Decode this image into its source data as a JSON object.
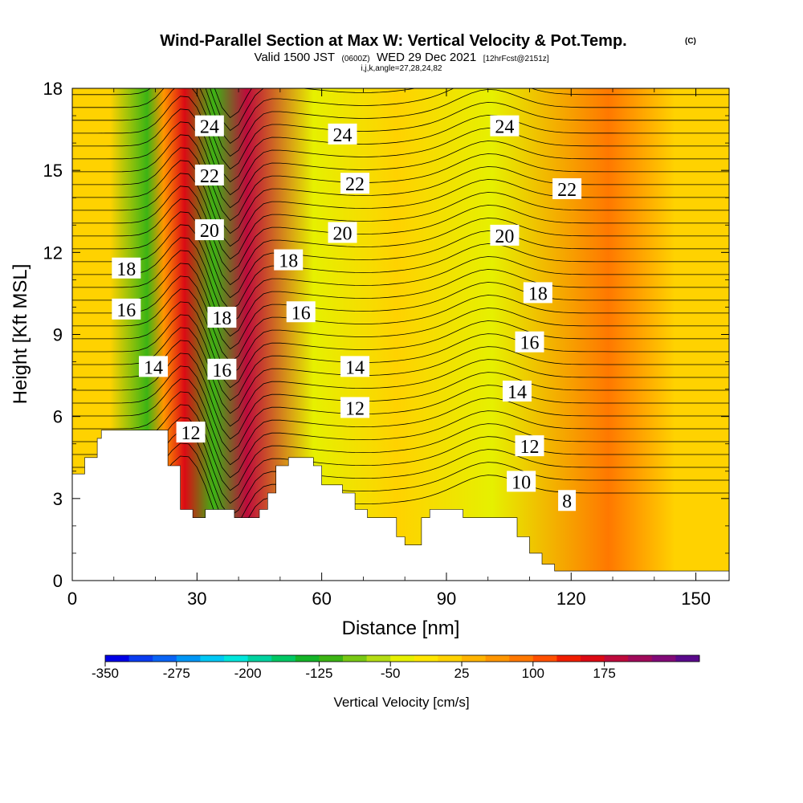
{
  "header": {
    "title": "Wind-Parallel Section at Max W: Vertical Velocity & Pot.Temp.",
    "title_mark": "(C)",
    "subtitle_a": "Valid 1500 JST",
    "subtitle_b": "(0600Z)",
    "subtitle_c": "WED 29 Dec 2021",
    "subtitle_d": "[12hrFcst@2151z]",
    "subtitle_e": "i,j,k,angle=27,28,24,82"
  },
  "chart_data": {
    "type": "contour-section",
    "xlabel": "Distance [nm]",
    "ylabel": "Height [Kft MSL]",
    "xlim": [
      0,
      158
    ],
    "ylim": [
      0,
      18
    ],
    "x_ticks": [
      0,
      30,
      60,
      90,
      120,
      150
    ],
    "y_ticks": [
      0,
      3,
      6,
      9,
      12,
      15,
      18
    ],
    "terrain_kft": [
      [
        0,
        3.9
      ],
      [
        3,
        3.9
      ],
      [
        3,
        4.5
      ],
      [
        6,
        4.5
      ],
      [
        6,
        5.2
      ],
      [
        7,
        5.2
      ],
      [
        7,
        5.5
      ],
      [
        13,
        5.5
      ],
      [
        13,
        5.5
      ],
      [
        23,
        5.5
      ],
      [
        23,
        4.2
      ],
      [
        26,
        4.2
      ],
      [
        26,
        2.6
      ],
      [
        29,
        2.6
      ],
      [
        29,
        2.3
      ],
      [
        32,
        2.3
      ],
      [
        32,
        2.6
      ],
      [
        39,
        2.6
      ],
      [
        39,
        2.3
      ],
      [
        45,
        2.3
      ],
      [
        45,
        2.6
      ],
      [
        47,
        2.6
      ],
      [
        47,
        3.2
      ],
      [
        49,
        3.2
      ],
      [
        49,
        4.2
      ],
      [
        52,
        4.2
      ],
      [
        52,
        4.5
      ],
      [
        58,
        4.5
      ],
      [
        58,
        4.2
      ],
      [
        60,
        4.2
      ],
      [
        60,
        3.5
      ],
      [
        65,
        3.5
      ],
      [
        65,
        3.2
      ],
      [
        68,
        3.2
      ],
      [
        68,
        2.6
      ],
      [
        71,
        2.6
      ],
      [
        71,
        2.3
      ],
      [
        78,
        2.3
      ],
      [
        78,
        1.6
      ],
      [
        80,
        1.6
      ],
      [
        80,
        1.3
      ],
      [
        84,
        1.3
      ],
      [
        84,
        2.3
      ],
      [
        86,
        2.3
      ],
      [
        86,
        2.6
      ],
      [
        94,
        2.6
      ],
      [
        94,
        2.3
      ],
      [
        100,
        2.3
      ],
      [
        100,
        2.3
      ],
      [
        107,
        2.3
      ],
      [
        107,
        1.6
      ],
      [
        110,
        1.6
      ],
      [
        110,
        1.0
      ],
      [
        113,
        1.0
      ],
      [
        113,
        0.6
      ],
      [
        116,
        0.6
      ],
      [
        116,
        0.35
      ],
      [
        158,
        0.35
      ]
    ],
    "velocity_columns": [
      {
        "x": 9,
        "w": 0
      },
      {
        "x": 18,
        "w": -110
      },
      {
        "x": 22,
        "w": 60
      },
      {
        "x": 27,
        "w": 170
      },
      {
        "x": 34,
        "w": -110
      },
      {
        "x": 42,
        "w": 180
      },
      {
        "x": 58,
        "w": -40
      },
      {
        "x": 78,
        "w": 10
      },
      {
        "x": 101,
        "w": -30
      },
      {
        "x": 129,
        "w": 95
      },
      {
        "x": 145,
        "w": 20
      }
    ],
    "theta_labels": [
      {
        "text": "24",
        "x": 33,
        "y": 16.6
      },
      {
        "text": "22",
        "x": 33,
        "y": 14.8
      },
      {
        "text": "20",
        "x": 33,
        "y": 12.8
      },
      {
        "text": "18",
        "x": 36,
        "y": 9.6
      },
      {
        "text": "16",
        "x": 36,
        "y": 7.7
      },
      {
        "text": "14",
        "x": 19.5,
        "y": 7.8
      },
      {
        "text": "12",
        "x": 28.5,
        "y": 5.4
      },
      {
        "text": "18",
        "x": 13,
        "y": 11.4
      },
      {
        "text": "16",
        "x": 13,
        "y": 9.9
      },
      {
        "text": "24",
        "x": 65,
        "y": 16.3
      },
      {
        "text": "22",
        "x": 68,
        "y": 14.5
      },
      {
        "text": "20",
        "x": 65,
        "y": 12.7
      },
      {
        "text": "18",
        "x": 52,
        "y": 11.7
      },
      {
        "text": "16",
        "x": 55,
        "y": 9.8
      },
      {
        "text": "14",
        "x": 68,
        "y": 7.8
      },
      {
        "text": "12",
        "x": 68,
        "y": 6.3
      },
      {
        "text": "24",
        "x": 104,
        "y": 16.6
      },
      {
        "text": "20",
        "x": 104,
        "y": 12.6
      },
      {
        "text": "22",
        "x": 119,
        "y": 14.3
      },
      {
        "text": "18",
        "x": 112,
        "y": 10.5
      },
      {
        "text": "16",
        "x": 110,
        "y": 8.7
      },
      {
        "text": "14",
        "x": 107,
        "y": 6.9
      },
      {
        "text": "12",
        "x": 110,
        "y": 4.9
      },
      {
        "text": "10",
        "x": 108,
        "y": 3.6
      },
      {
        "text": "8",
        "x": 119,
        "y": 2.9
      }
    ],
    "colorbar": {
      "label": "Vertical Velocity [cm/s]",
      "ticks": [
        "-350",
        "-275",
        "-200",
        "-125",
        "-50",
        "25",
        "100",
        "175"
      ],
      "colors": [
        "#0000e6",
        "#0a3cf0",
        "#0a64f5",
        "#0096f5",
        "#00c8f5",
        "#00e6dc",
        "#00d2a0",
        "#00c864",
        "#14b428",
        "#3cb414",
        "#78c814",
        "#b4dc14",
        "#e6f000",
        "#ffe600",
        "#ffd200",
        "#ffb400",
        "#ff9600",
        "#ff7800",
        "#ff5000",
        "#f01e00",
        "#dc0a14",
        "#be0a3c",
        "#a00a5a",
        "#820a78",
        "#5a0a8c"
      ]
    }
  }
}
